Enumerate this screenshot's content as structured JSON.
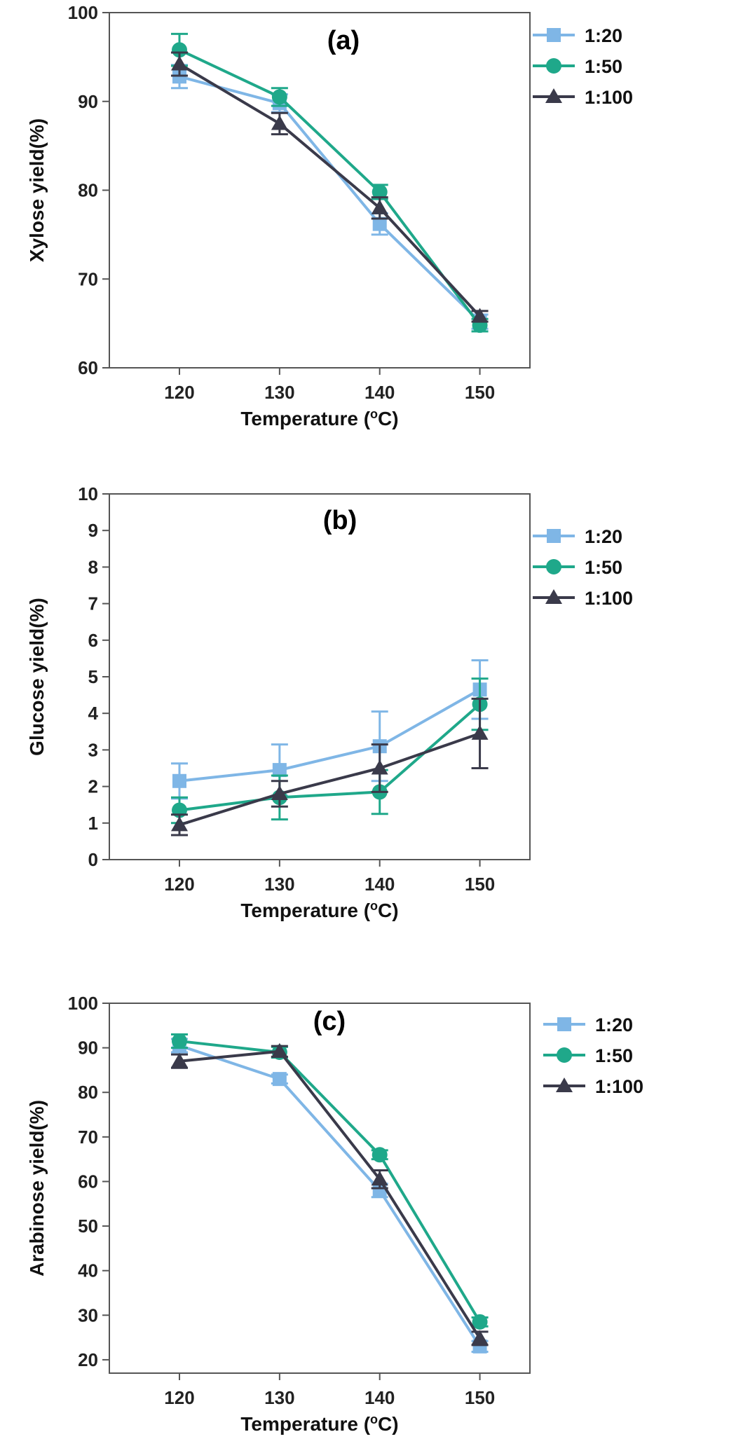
{
  "series_styles": [
    {
      "name": "1:20",
      "color": "#7fb6e6",
      "marker": "square"
    },
    {
      "name": "1:50",
      "color": "#1fa88a",
      "marker": "circle"
    },
    {
      "name": "1:100",
      "color": "#3a3a4a",
      "marker": "triangle"
    }
  ],
  "chart_data": [
    {
      "type": "line",
      "panel_label": "(a)",
      "title": "",
      "xlabel": "Temperature (",
      "xlabel_sup": "o",
      "xlabel_tail": "C)",
      "ylabel": "Xylose yield(%)",
      "x": [
        120,
        130,
        140,
        150
      ],
      "xlim": [
        113,
        155
      ],
      "ylim": [
        60,
        100
      ],
      "yticks": [
        60,
        70,
        80,
        90,
        100
      ],
      "legend_position": "top-right",
      "series": [
        {
          "name": "1:20",
          "values": [
            92.8,
            89.8,
            76.2,
            65.2
          ],
          "errors": [
            1.3,
            1.0,
            1.2,
            0.8
          ]
        },
        {
          "name": "1:50",
          "values": [
            95.8,
            90.5,
            79.8,
            64.8
          ],
          "errors": [
            1.8,
            1.0,
            0.8,
            0.7
          ]
        },
        {
          "name": "1:100",
          "values": [
            94.2,
            87.5,
            78.0,
            65.8
          ],
          "errors": [
            1.3,
            1.2,
            1.2,
            0.6
          ]
        }
      ]
    },
    {
      "type": "line",
      "panel_label": "(b)",
      "title": "",
      "xlabel": "Temperature (",
      "xlabel_sup": "o",
      "xlabel_tail": "C)",
      "ylabel": "Glucose yield(%)",
      "x": [
        120,
        130,
        140,
        150
      ],
      "xlim": [
        113,
        155
      ],
      "ylim": [
        0,
        10
      ],
      "yticks": [
        0,
        1,
        2,
        3,
        4,
        5,
        6,
        7,
        8,
        9,
        10
      ],
      "legend_position": "top-right",
      "series": [
        {
          "name": "1:20",
          "values": [
            2.15,
            2.45,
            3.1,
            4.65
          ],
          "errors": [
            0.48,
            0.7,
            0.95,
            0.8
          ]
        },
        {
          "name": "1:50",
          "values": [
            1.35,
            1.7,
            1.85,
            4.25
          ],
          "errors": [
            0.35,
            0.6,
            0.6,
            0.7
          ]
        },
        {
          "name": "1:100",
          "values": [
            0.95,
            1.8,
            2.5,
            3.45
          ],
          "errors": [
            0.28,
            0.35,
            0.65,
            0.95
          ]
        }
      ]
    },
    {
      "type": "line",
      "panel_label": "(c)",
      "title": "",
      "xlabel": "Temperature (",
      "xlabel_sup": "o",
      "xlabel_tail": "C)",
      "ylabel": "Arabinose yield(%)",
      "x": [
        120,
        130,
        140,
        150
      ],
      "xlim": [
        113,
        155
      ],
      "ylim": [
        17,
        100
      ],
      "yticks": [
        20,
        30,
        40,
        50,
        60,
        70,
        80,
        90,
        100
      ],
      "legend_position": "top-right",
      "series": [
        {
          "name": "1:20",
          "values": [
            90.5,
            83.0,
            58.0,
            23.0
          ],
          "errors": [
            1.5,
            1.0,
            1.5,
            1.2
          ]
        },
        {
          "name": "1:50",
          "values": [
            91.5,
            89.0,
            66.0,
            28.5
          ],
          "errors": [
            1.5,
            1.2,
            1.0,
            1.0
          ]
        },
        {
          "name": "1:100",
          "values": [
            87.0,
            89.2,
            60.5,
            24.8
          ],
          "errors": [
            1.5,
            1.2,
            2.0,
            1.5
          ]
        }
      ]
    }
  ]
}
